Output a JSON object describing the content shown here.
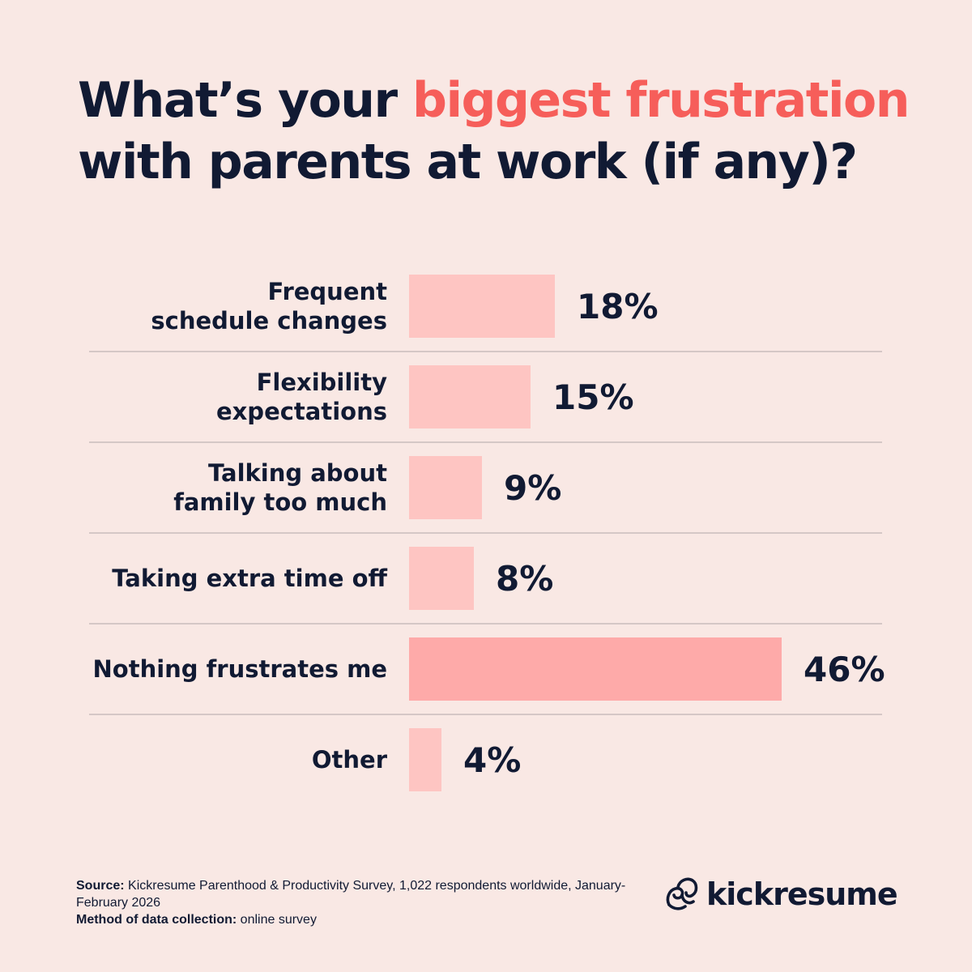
{
  "title": {
    "part1": "What’s your ",
    "highlight": "biggest frustration",
    "part2": "with parents at work (if any)?"
  },
  "colors": {
    "background": "#f9e8e4",
    "bar": "#fec5c2",
    "bar_highlight": "#feaaa9",
    "accent": "#f65e5a",
    "text": "#111a33",
    "divider": "#c9bcbb"
  },
  "chart_data": {
    "type": "bar",
    "orientation": "horizontal",
    "categories": [
      [
        "Frequent",
        "schedule changes"
      ],
      [
        "Flexibility",
        "expectations"
      ],
      [
        "Talking about",
        "family too much"
      ],
      [
        "Taking extra time off"
      ],
      [
        "Nothing frustrates me"
      ],
      [
        "Other"
      ]
    ],
    "values": [
      18,
      15,
      9,
      8,
      46,
      4
    ],
    "value_labels": [
      "18%",
      "15%",
      "9%",
      "8%",
      "46%",
      "4%"
    ],
    "highlight_index": 4,
    "unit": "%",
    "xlim": [
      0,
      50
    ]
  },
  "footer": {
    "source_label": "Source:",
    "source_text": " Kickresume Parenthood & Productivity Survey, 1,022 respondents worldwide, January-February 2026",
    "method_label": "Method of data collection:",
    "method_text": " online survey"
  },
  "logo": {
    "text": "kickresume",
    "icon": "kickresume-logo-icon"
  }
}
